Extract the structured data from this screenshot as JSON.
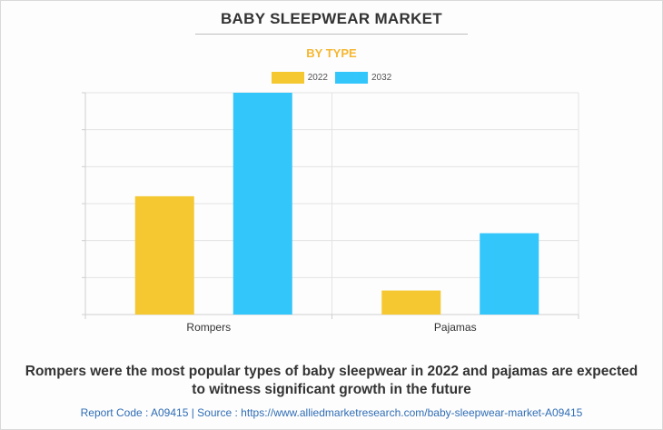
{
  "chart_data": {
    "type": "bar",
    "title": "BABY SLEEPWEAR MARKET",
    "subtitle": "BY TYPE",
    "categories": [
      "Rompers",
      "Pajamas"
    ],
    "series": [
      {
        "name": "2022",
        "values": [
          3.2,
          0.65
        ],
        "color": "#f5c832"
      },
      {
        "name": "2032",
        "values": [
          6.0,
          2.2
        ],
        "color": "#33c6fb"
      }
    ],
    "ylim": [
      0,
      6
    ],
    "grid": true,
    "legend": "top-center"
  },
  "caption": {
    "line1": "Rompers were the most popular types of baby sleepwear in 2022 and pajamas are expected",
    "line2": "to witness significant growth in the future"
  },
  "footer": "Report Code : A09415  |  Source : https://www.alliedmarketresearch.com/baby-sleepwear-market-A09415"
}
